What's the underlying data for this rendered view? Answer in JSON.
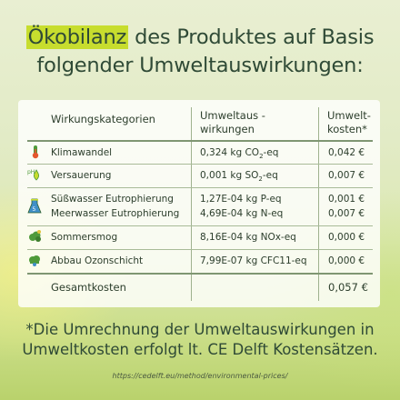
{
  "title": {
    "highlight": "Ökobilanz",
    "line1_rest": " des Produktes auf Basis",
    "line2": "folgender Umweltauswirkungen:"
  },
  "table": {
    "headers": {
      "category": "Wirkungskategorien",
      "impact_line1": "Umweltaus -",
      "impact_line2": "wirkungen",
      "cost_line1": "Umwelt-",
      "cost_line2": "kosten*"
    },
    "rows": [
      {
        "icon": "thermometer-icon",
        "category": "Klimawandel",
        "impact_num": "0,324 kg CO",
        "impact_sub": "2",
        "impact_suffix": "-eq",
        "cost": "0,042 €"
      },
      {
        "icon": "ph-drop-icon",
        "category": "Versauerung",
        "impact_num": "0,001 kg SO",
        "impact_sub": "2",
        "impact_suffix": "-eq",
        "cost": "0,007 €"
      },
      {
        "icon": "flask-icon",
        "category": "Süßwasser Eutrophierung",
        "impact_num": "1,27E-04 kg P-eq",
        "cost": "0,001 €"
      },
      {
        "category": "Meerwasser Eutrophierung",
        "impact_num": "4,69E-04 kg N-eq",
        "cost": "0,007 €"
      },
      {
        "icon": "smog-cloud-icon",
        "category": "Sommersmog",
        "impact_num": "8,16E-04 kg NOx-eq",
        "cost": "0,000 €"
      },
      {
        "icon": "ozone-cloud-icon",
        "category": "Abbau Ozonschicht",
        "impact_num": "7,99E-07 kg CFC11-eq",
        "cost": "0,000 €"
      }
    ],
    "total_label": "Gesamtkosten",
    "total_cost": "0,057 €"
  },
  "footnote": {
    "line1": "*Die Umrechnung der Umweltauswirkungen in",
    "line2": "Umweltkosten erfolgt lt. CE Delft Kostensätzen."
  },
  "source_url": "https://cedelft.eu/method/environmental-prices/",
  "colors": {
    "highlight": "#c7dd2e",
    "text": "#2f4a36",
    "icon_green": "#4f9a3a"
  }
}
